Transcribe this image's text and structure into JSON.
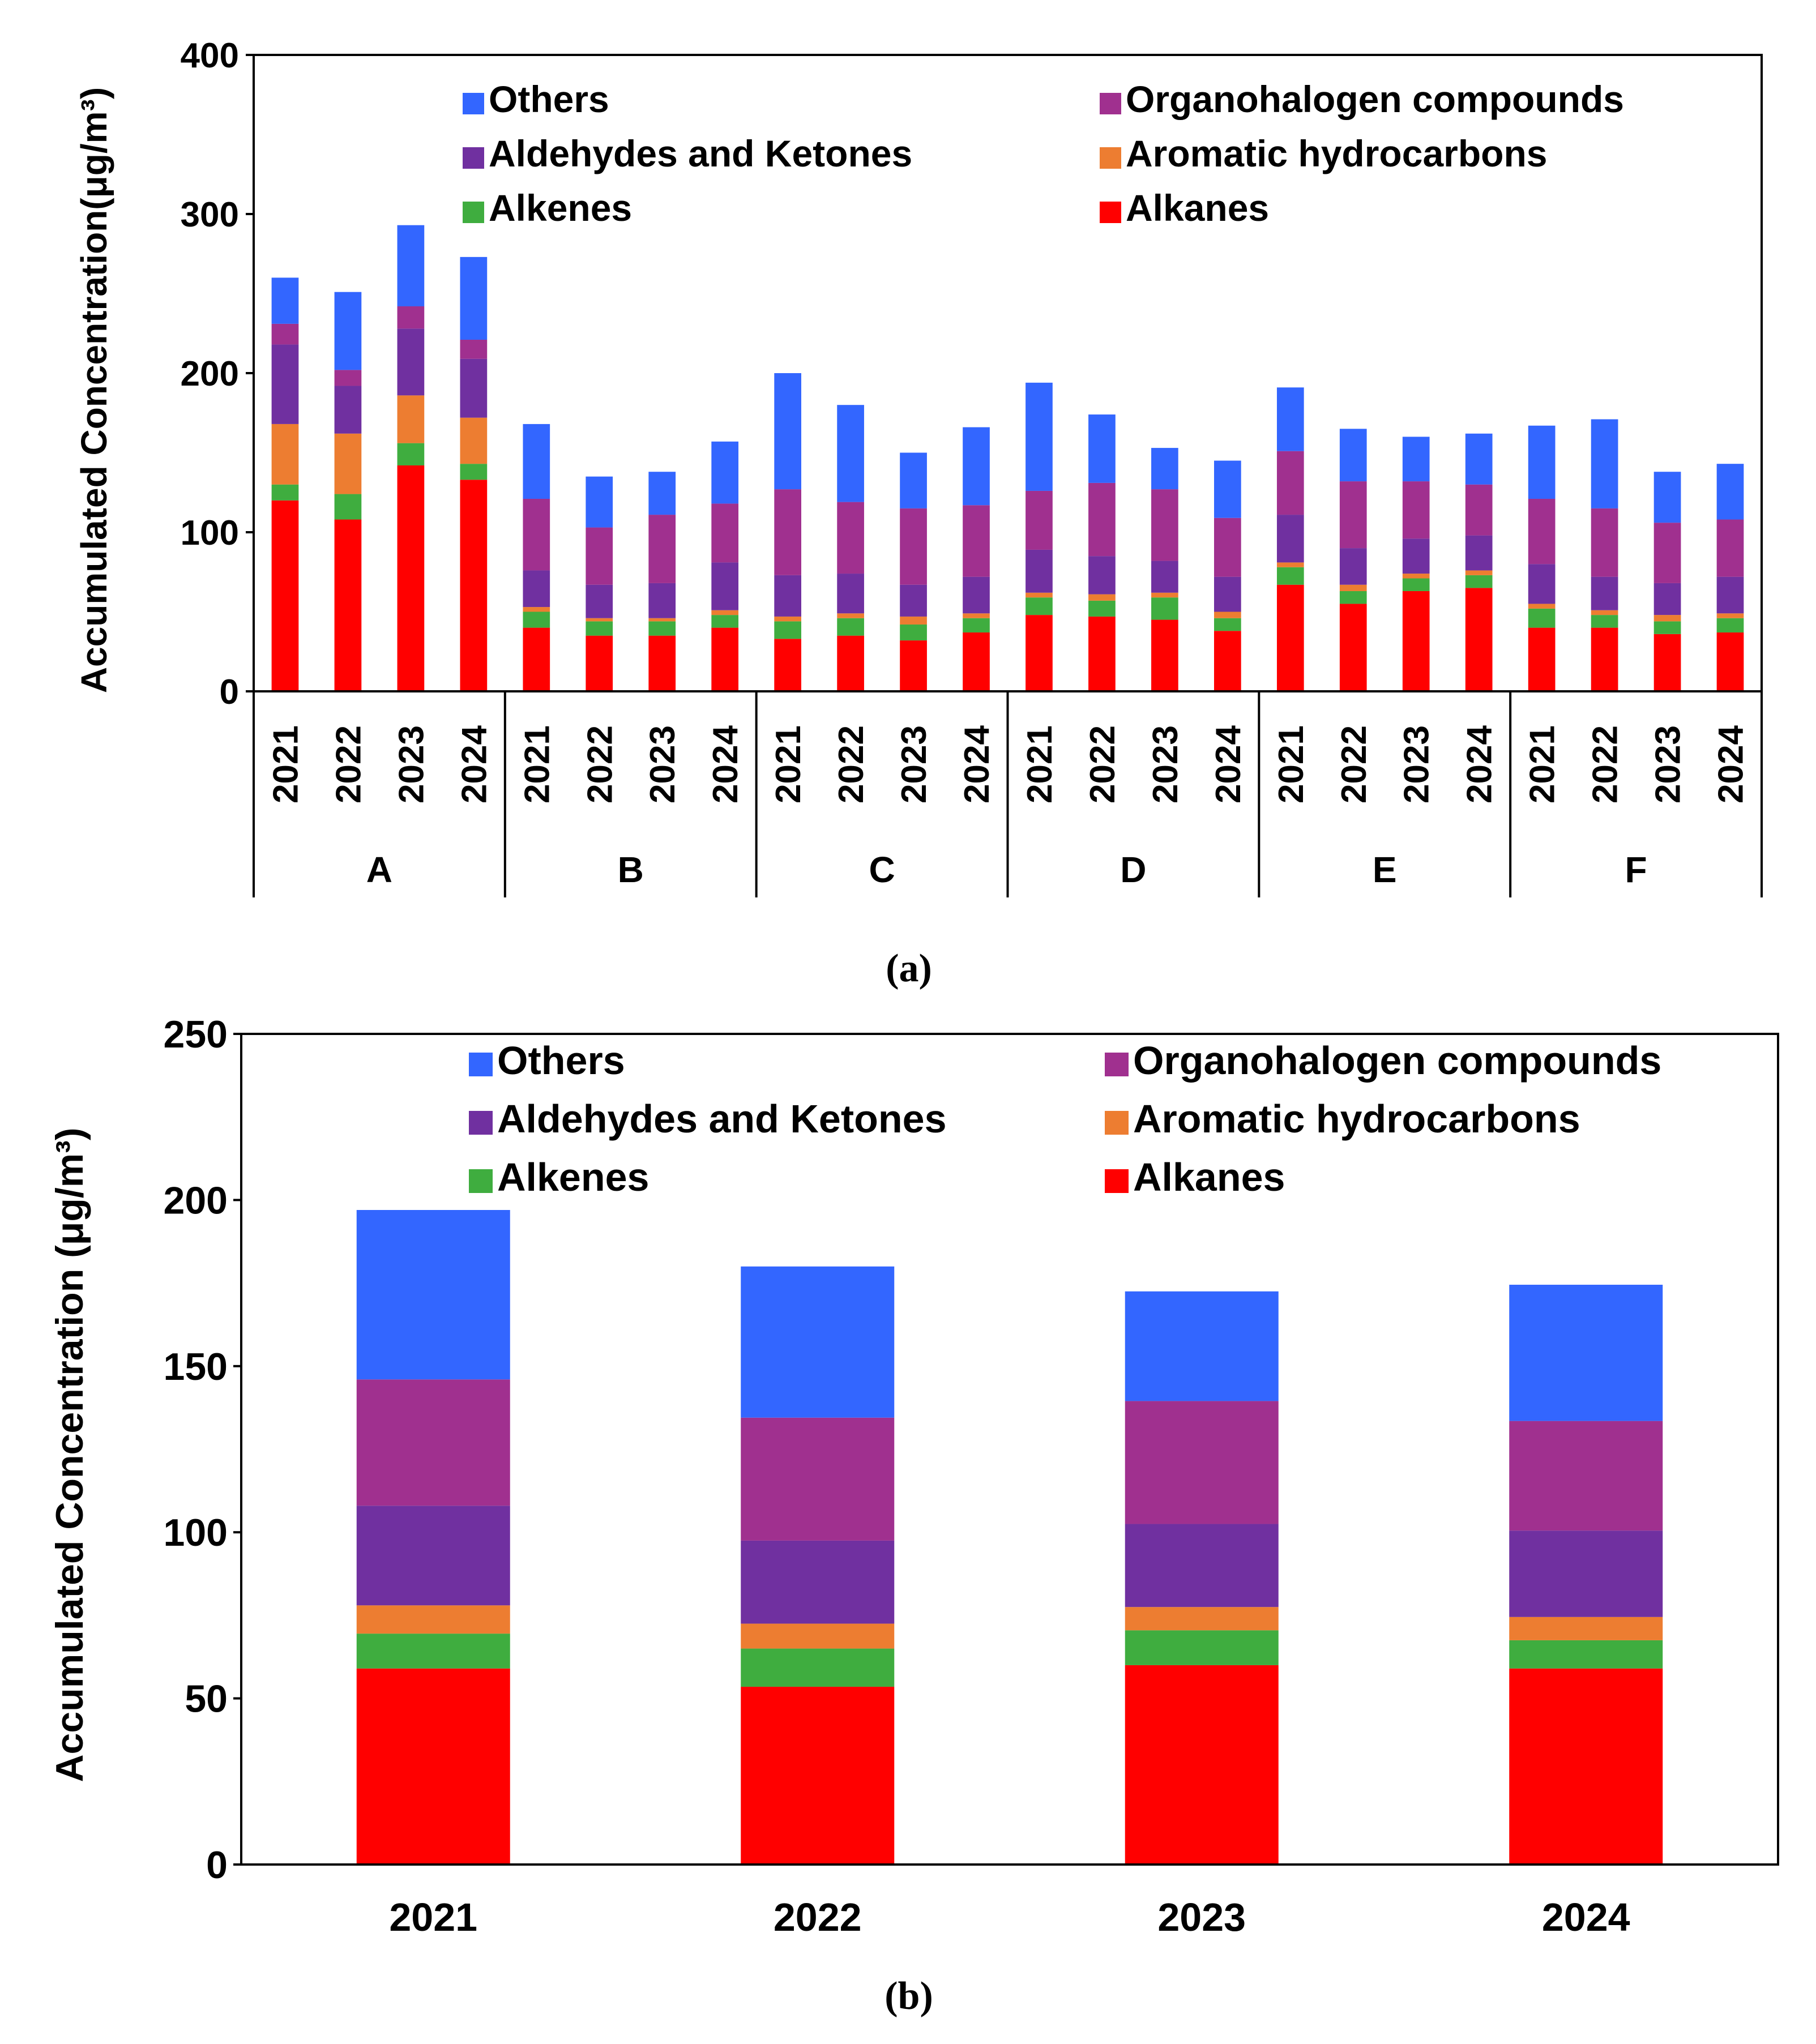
{
  "chart_data": [
    {
      "type": "bar",
      "stacked": true,
      "panel_label": "a",
      "ylabel": "Accumulated Concentration(μg/m³)",
      "ylim": [
        0,
        400
      ],
      "yticks": [
        0,
        100,
        200,
        300,
        400
      ],
      "grid": false,
      "legend_position": "top",
      "groups": [
        "A",
        "B",
        "C",
        "D",
        "E",
        "F"
      ],
      "years": [
        "2021",
        "2022",
        "2023",
        "2024"
      ],
      "series": [
        {
          "name": "Alkanes",
          "color": "#ff0000",
          "values": [
            120,
            108,
            142,
            133,
            40,
            35,
            35,
            40,
            33,
            35,
            32,
            37,
            48,
            47,
            45,
            38,
            67,
            55,
            63,
            65,
            40,
            40,
            36,
            37
          ]
        },
        {
          "name": "Alkenes",
          "color": "#3fad3f",
          "values": [
            10,
            16,
            14,
            10,
            10,
            9,
            9,
            8,
            11,
            11,
            10,
            9,
            11,
            10,
            14,
            8,
            11,
            8,
            8,
            8,
            12,
            8,
            8,
            9
          ]
        },
        {
          "name": "Aromatic hydrocarbons",
          "color": "#ed7d31",
          "values": [
            38,
            38,
            30,
            29,
            3,
            2,
            2,
            3,
            3,
            3,
            5,
            3,
            3,
            4,
            3,
            4,
            3,
            4,
            3,
            3,
            3,
            3,
            4,
            3
          ]
        },
        {
          "name": "Aldehydes and Ketones",
          "color": "#7030a0",
          "values": [
            50,
            30,
            42,
            37,
            23,
            21,
            22,
            30,
            26,
            25,
            20,
            23,
            27,
            24,
            20,
            22,
            30,
            23,
            22,
            22,
            25,
            21,
            20,
            23
          ]
        },
        {
          "name": "Organohalogen compounds",
          "color": "#a0308f",
          "values": [
            13,
            10,
            14,
            12,
            45,
            36,
            43,
            37,
            54,
            45,
            48,
            45,
            37,
            46,
            45,
            37,
            40,
            42,
            36,
            32,
            41,
            43,
            38,
            36
          ]
        },
        {
          "name": "Others",
          "color": "#3366ff",
          "values": [
            29,
            49,
            51,
            52,
            47,
            32,
            27,
            39,
            73,
            61,
            35,
            49,
            68,
            43,
            26,
            36,
            40,
            33,
            28,
            32,
            46,
            56,
            32,
            35
          ]
        }
      ]
    },
    {
      "type": "bar",
      "stacked": true,
      "panel_label": "b",
      "ylabel": "Accumulated Concentration (μg/m³)",
      "ylim": [
        0,
        250
      ],
      "yticks": [
        0,
        50,
        100,
        150,
        200,
        250
      ],
      "grid": false,
      "legend_position": "top",
      "categories": [
        "2021",
        "2022",
        "2023",
        "2024"
      ],
      "series": [
        {
          "name": "Alkanes",
          "color": "#ff0000",
          "values": [
            59,
            53.5,
            60,
            59
          ]
        },
        {
          "name": "Alkenes",
          "color": "#3fad3f",
          "values": [
            10.5,
            11.5,
            10.5,
            8.5
          ]
        },
        {
          "name": "Aromatic hydrocarbons",
          "color": "#ed7d31",
          "values": [
            8.5,
            7.5,
            7,
            7
          ]
        },
        {
          "name": "Aldehydes and Ketones",
          "color": "#7030a0",
          "values": [
            30,
            25,
            25,
            26
          ]
        },
        {
          "name": "Organohalogen compounds",
          "color": "#a0308f",
          "values": [
            38,
            37,
            37,
            33
          ]
        },
        {
          "name": "Others",
          "color": "#3366ff",
          "values": [
            51,
            45.5,
            33,
            41
          ]
        }
      ]
    }
  ],
  "legend_order": [
    "Others",
    "Organohalogen compounds",
    "Aldehydes and Ketones",
    "Aromatic hydrocarbons",
    "Alkenes",
    "Alkanes"
  ],
  "captions": [
    "(a)",
    "(b)"
  ]
}
